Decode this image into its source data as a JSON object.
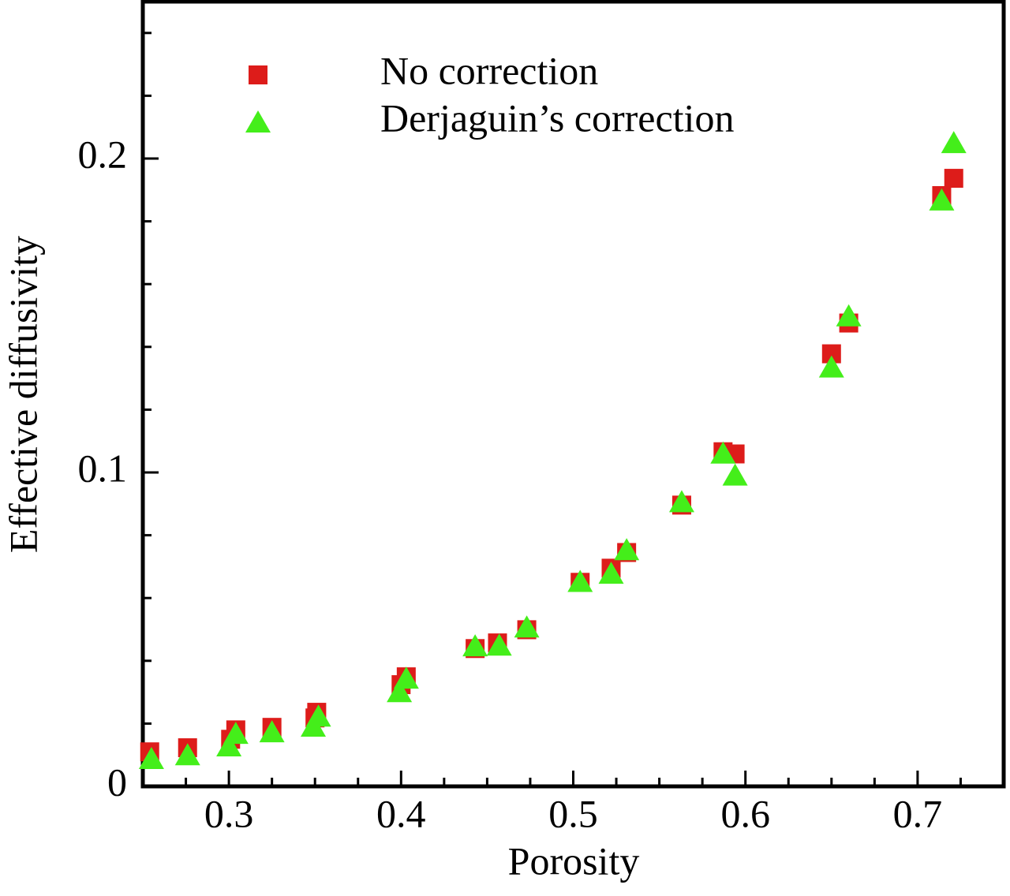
{
  "chart_data": {
    "type": "scatter",
    "xlabel": "Porosity",
    "ylabel": "Effective diffusivity",
    "xlim": [
      0.25,
      0.75
    ],
    "ylim": [
      0,
      0.25
    ],
    "xticks": [
      0.3,
      0.4,
      0.5,
      0.6,
      0.7
    ],
    "yticks": [
      0,
      0.1,
      0.2
    ],
    "x_minor_ticks": [
      0.275,
      0.325,
      0.35,
      0.375,
      0.425,
      0.45,
      0.475,
      0.525,
      0.55,
      0.575,
      0.625,
      0.65,
      0.675,
      0.725
    ],
    "y_minor_ticks": [
      0.02,
      0.04,
      0.06,
      0.08,
      0.12,
      0.14,
      0.16,
      0.18,
      0.22,
      0.24
    ],
    "legend": "upper left",
    "series": [
      {
        "name": "No correction",
        "color": "#dd1c1a",
        "marker": "square",
        "x": [
          0.254,
          0.276,
          0.301,
          0.304,
          0.325,
          0.35,
          0.351,
          0.4,
          0.403,
          0.443,
          0.456,
          0.473,
          0.504,
          0.522,
          0.531,
          0.563,
          0.587,
          0.594,
          0.65,
          0.66,
          0.714,
          0.721
        ],
        "values": [
          0.011,
          0.0123,
          0.015,
          0.018,
          0.0188,
          0.0218,
          0.0236,
          0.0324,
          0.0349,
          0.0439,
          0.0457,
          0.0499,
          0.065,
          0.0695,
          0.0745,
          0.0896,
          0.1066,
          0.1059,
          0.1378,
          0.1476,
          0.1882,
          0.1937
        ]
      },
      {
        "name": "Derjaguin’s correction",
        "color": "#44ee1a",
        "marker": "triangle",
        "x": [
          0.255,
          0.276,
          0.3,
          0.304,
          0.325,
          0.349,
          0.352,
          0.399,
          0.403,
          0.443,
          0.457,
          0.473,
          0.504,
          0.522,
          0.531,
          0.563,
          0.587,
          0.594,
          0.65,
          0.66,
          0.714,
          0.721
        ],
        "values": [
          0.0088,
          0.01,
          0.0128,
          0.0168,
          0.0173,
          0.0191,
          0.0223,
          0.0301,
          0.0344,
          0.0447,
          0.0449,
          0.0507,
          0.0652,
          0.0678,
          0.0753,
          0.0906,
          0.1061,
          0.0991,
          0.1335,
          0.1498,
          0.1867,
          0.205
        ]
      }
    ]
  }
}
